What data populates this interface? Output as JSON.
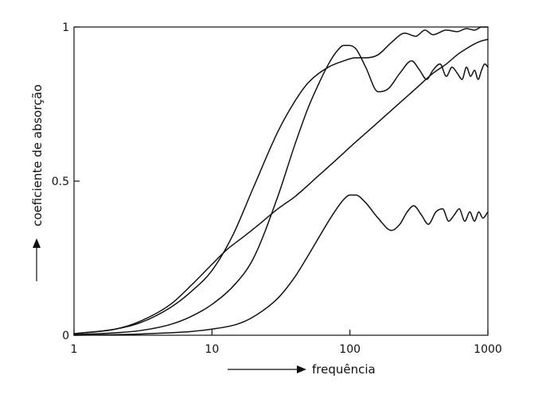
{
  "chart_data": {
    "type": "line",
    "xscale": "log",
    "xlim": [
      1,
      1000
    ],
    "ylim": [
      0,
      1
    ],
    "xlabel": "frequência",
    "ylabel": "coeficiente de absorção",
    "xticks": [
      {
        "value": 1,
        "label": "1"
      },
      {
        "value": 10,
        "label": "10"
      },
      {
        "value": 100,
        "label": "100"
      },
      {
        "value": 1000,
        "label": "1000"
      }
    ],
    "yticks": [
      {
        "value": 0,
        "label": "0"
      },
      {
        "value": 0.5,
        "label": "0.5"
      },
      {
        "value": 1,
        "label": "1"
      }
    ],
    "grid": false,
    "series": [
      {
        "x": [
          1,
          2,
          3,
          5,
          7,
          10,
          14,
          20,
          30,
          40,
          50,
          70,
          90,
          110,
          130,
          160,
          200,
          250,
          300,
          350,
          400,
          500,
          600,
          700,
          800,
          900,
          1000
        ],
        "y": [
          0.005,
          0.02,
          0.04,
          0.09,
          0.14,
          0.21,
          0.32,
          0.48,
          0.66,
          0.76,
          0.82,
          0.87,
          0.89,
          0.9,
          0.9,
          0.91,
          0.95,
          0.98,
          0.97,
          0.99,
          0.975,
          0.99,
          0.985,
          0.995,
          0.99,
          1.0,
          1.0
        ]
      },
      {
        "x": [
          1,
          2,
          3,
          5,
          7,
          10,
          15,
          20,
          30,
          40,
          50,
          60,
          70,
          80,
          90,
          110,
          130,
          160,
          190,
          230,
          280,
          320,
          360,
          400,
          450,
          500,
          550,
          600,
          650,
          700,
          750,
          800,
          850,
          900,
          950,
          1000
        ],
        "y": [
          0.002,
          0.008,
          0.015,
          0.035,
          0.06,
          0.1,
          0.17,
          0.25,
          0.45,
          0.62,
          0.74,
          0.82,
          0.88,
          0.92,
          0.94,
          0.93,
          0.87,
          0.79,
          0.8,
          0.85,
          0.89,
          0.86,
          0.83,
          0.86,
          0.88,
          0.84,
          0.87,
          0.85,
          0.83,
          0.87,
          0.84,
          0.86,
          0.83,
          0.86,
          0.88,
          0.87
        ]
      },
      {
        "x": [
          1,
          2,
          3,
          5,
          7,
          10,
          13,
          17,
          22,
          30,
          40,
          60,
          80,
          100,
          150,
          200,
          300,
          400,
          500,
          600,
          700,
          800,
          900,
          1000
        ],
        "y": [
          0.005,
          0.02,
          0.045,
          0.1,
          0.16,
          0.23,
          0.28,
          0.32,
          0.36,
          0.41,
          0.45,
          0.52,
          0.57,
          0.61,
          0.68,
          0.73,
          0.8,
          0.85,
          0.88,
          0.91,
          0.93,
          0.945,
          0.955,
          0.96
        ]
      },
      {
        "x": [
          1,
          2,
          3,
          5,
          7,
          10,
          15,
          20,
          30,
          40,
          50,
          60,
          70,
          80,
          90,
          100,
          110,
          130,
          160,
          200,
          230,
          260,
          290,
          330,
          370,
          420,
          470,
          520,
          570,
          620,
          680,
          740,
          800,
          860,
          920,
          1000
        ],
        "y": [
          0.0,
          0.002,
          0.004,
          0.008,
          0.012,
          0.02,
          0.035,
          0.06,
          0.12,
          0.19,
          0.26,
          0.32,
          0.37,
          0.41,
          0.44,
          0.455,
          0.455,
          0.43,
          0.38,
          0.34,
          0.36,
          0.4,
          0.42,
          0.39,
          0.36,
          0.4,
          0.41,
          0.37,
          0.39,
          0.41,
          0.37,
          0.4,
          0.37,
          0.4,
          0.38,
          0.4
        ]
      }
    ]
  }
}
